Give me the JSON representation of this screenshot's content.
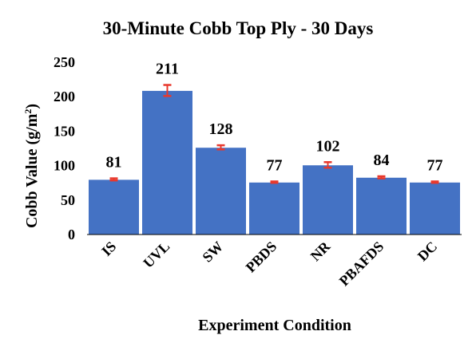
{
  "chart_data": {
    "type": "bar",
    "title": "30-Minute Cobb Top Ply - 30 Days",
    "xlabel": "Experiment Condition",
    "ylabel": "Cobb Value (g/m",
    "ylabel_sup": "2",
    "ylabel_end": ")",
    "ylim": [
      0,
      250
    ],
    "yticks": [
      0,
      50,
      100,
      150,
      200,
      250
    ],
    "categories": [
      "IS",
      "UVL",
      "SW",
      "PBDS",
      "NR",
      "PBAFDS",
      "DC"
    ],
    "values": [
      81,
      211,
      128,
      77,
      102,
      84,
      77
    ],
    "bar_heights": [
      80,
      209,
      126.5,
      76,
      101,
      83,
      76
    ],
    "error": [
      1.5,
      8,
      3,
      1,
      4,
      1.5,
      1
    ],
    "data_labels": [
      "81",
      "211",
      "128",
      "77",
      "102",
      "84",
      "77"
    ],
    "grid": false,
    "legend": "none",
    "colors": {
      "bar": "#4472C4",
      "bar_edge": "#ffffff",
      "error_bar": "#E8382C",
      "axis": "#000000"
    }
  }
}
